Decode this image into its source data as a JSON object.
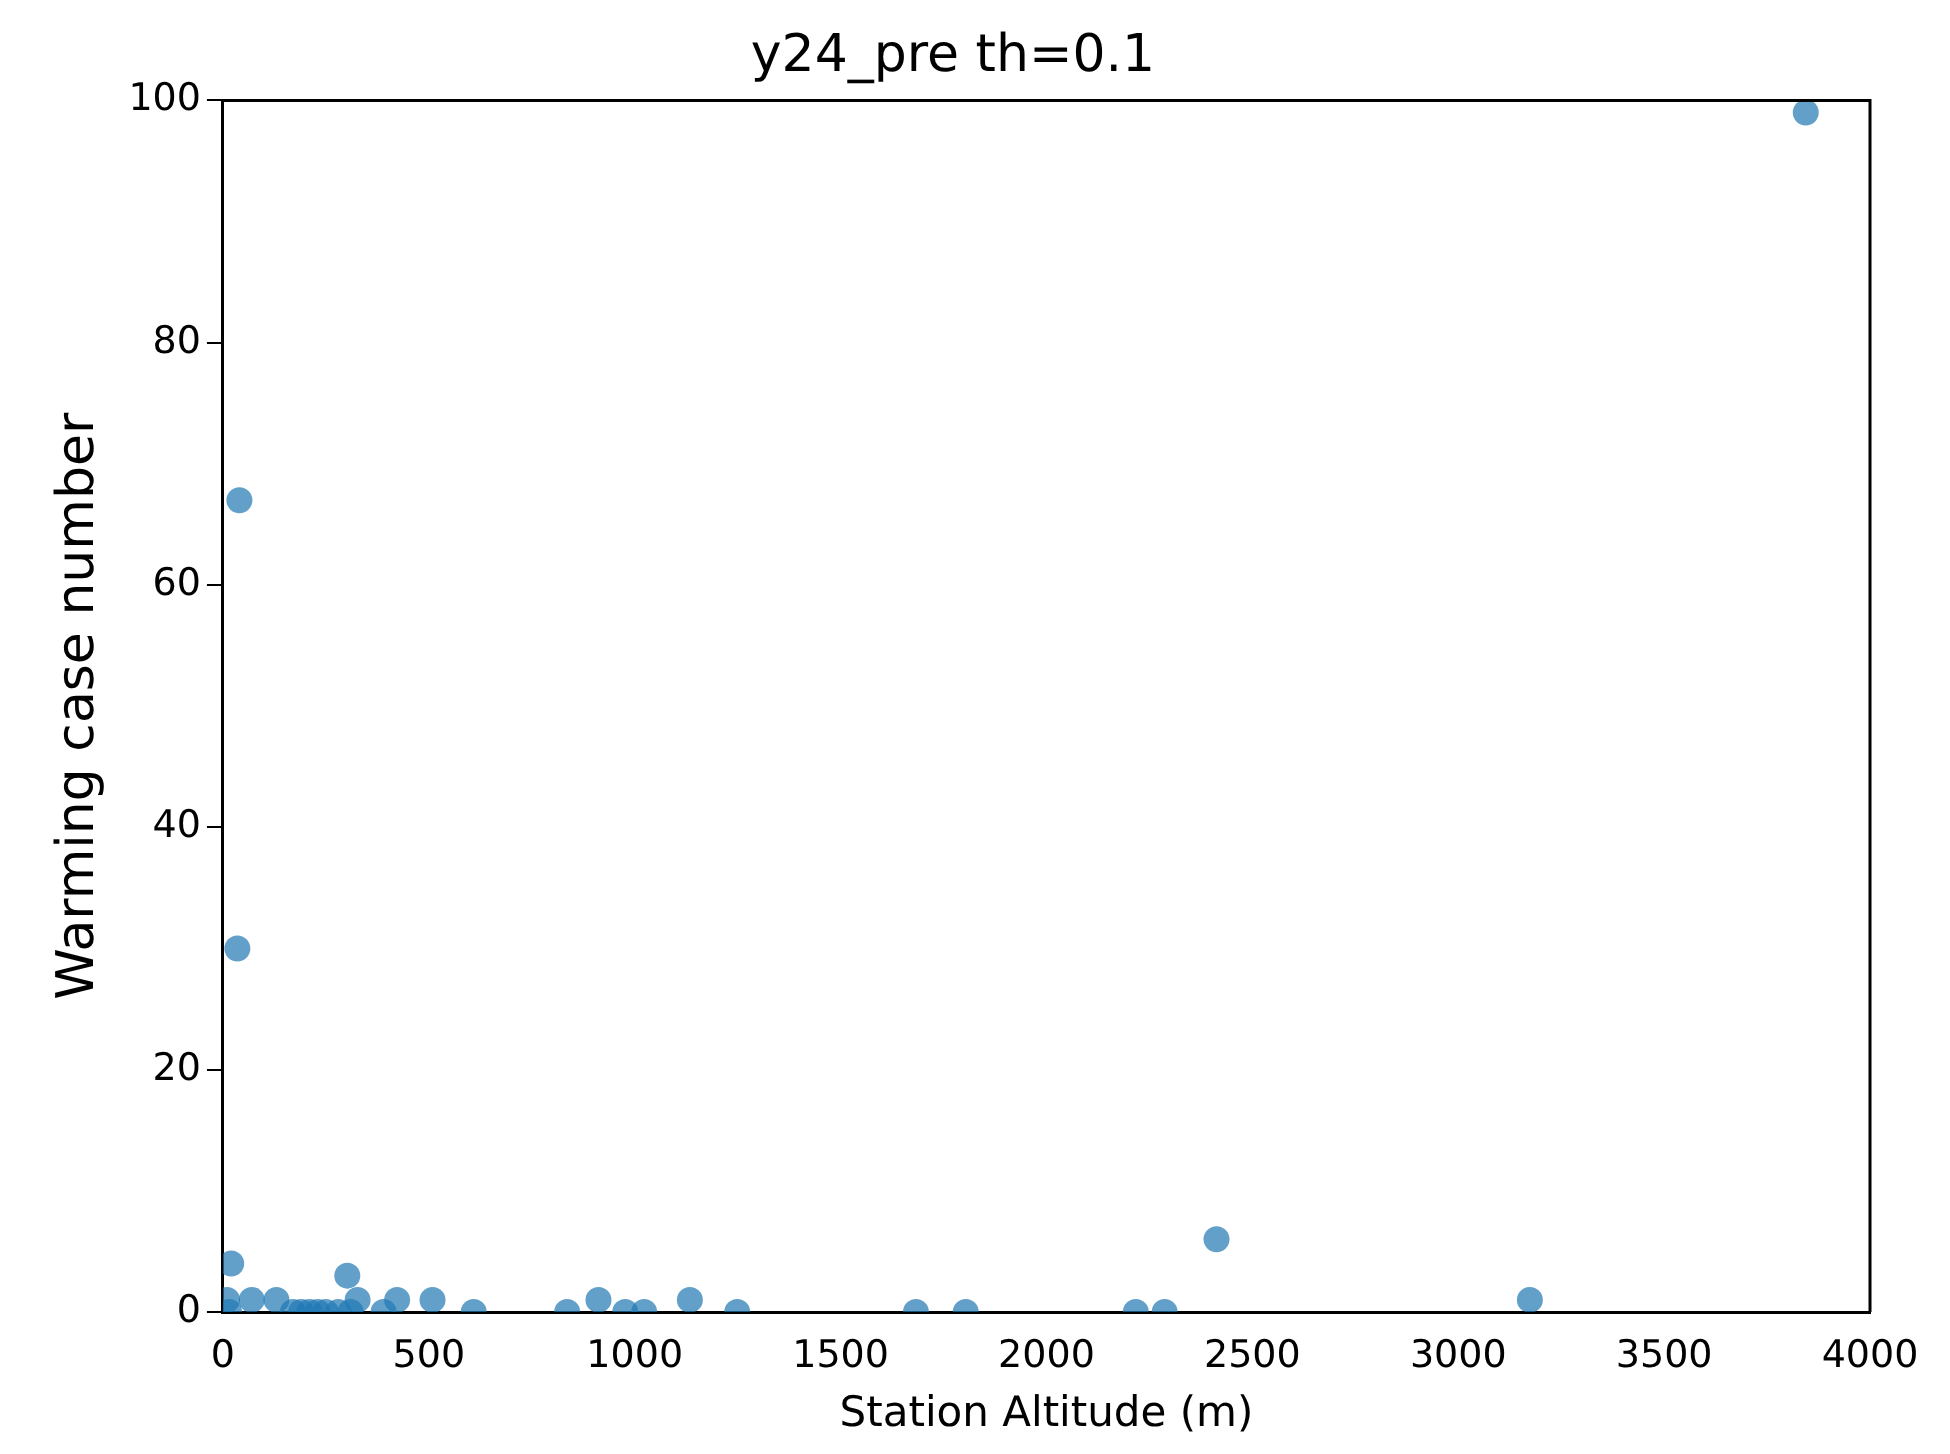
{
  "chart_data": {
    "type": "scatter",
    "title": "y24_pre th=0.1",
    "xlabel": "Station Altitude (m)",
    "ylabel": "Warming case number",
    "x": [
      40,
      35,
      20,
      302,
      327,
      423,
      509,
      912,
      1134,
      609,
      836,
      977,
      1023,
      1249,
      1683,
      1804,
      2217,
      2287,
      2413,
      3174,
      3844,
      10,
      70,
      130,
      15,
      170,
      190,
      210,
      230,
      250,
      280,
      310,
      390
    ],
    "values": [
      67,
      30,
      4,
      3,
      1,
      1,
      1,
      1,
      1,
      0,
      0,
      0,
      0,
      0,
      0,
      0,
      0,
      0,
      6,
      1,
      99,
      1,
      1,
      1,
      0,
      0,
      0,
      0,
      0,
      0,
      0,
      0,
      0
    ],
    "color": "#1f77b4",
    "marker": "circle",
    "xlim": [
      0,
      4000
    ],
    "ylim": [
      0,
      100
    ],
    "xticks": [
      0,
      500,
      1000,
      1500,
      2000,
      2500,
      3000,
      3500,
      4000
    ],
    "yticks": [
      0,
      20,
      40,
      60,
      80,
      100
    ],
    "grid": false
  }
}
